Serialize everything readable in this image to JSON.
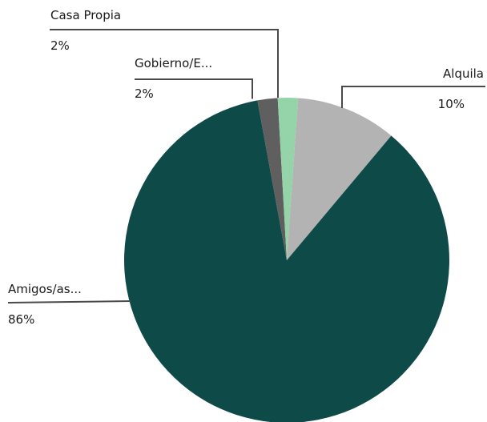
{
  "chart_data": {
    "type": "pie",
    "title": "",
    "slices": [
      {
        "label": "Alquila",
        "percent_label": "10%",
        "value": 10,
        "color": "#b3b3b3"
      },
      {
        "label": "Amigos/as...",
        "percent_label": "86%",
        "value": 86,
        "color": "#0e4a48"
      },
      {
        "label": "Gobierno/E...",
        "percent_label": "2%",
        "value": 2,
        "color": "#5f5f5f"
      },
      {
        "label": "Casa Propia",
        "percent_label": "2%",
        "value": 2,
        "color": "#94d4a8"
      }
    ],
    "leader_color": "#4a4a4a"
  }
}
